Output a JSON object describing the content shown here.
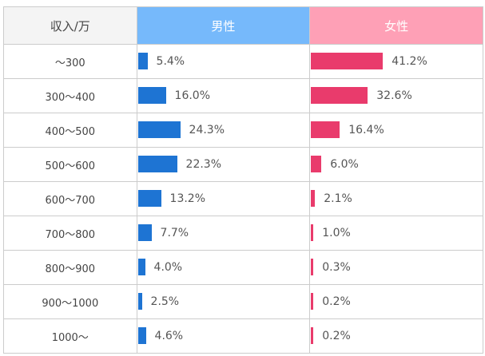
{
  "chart_data": {
    "type": "table",
    "headers": {
      "category": "収入/万",
      "male": "男性",
      "female": "女性"
    },
    "categories": [
      "～300",
      "300～400",
      "400～500",
      "500～600",
      "600～700",
      "700～800",
      "800～900",
      "900～1000",
      "1000～"
    ],
    "series": [
      {
        "name": "男性",
        "color": "#1e74d3",
        "values": [
          5.4,
          16.0,
          24.3,
          22.3,
          13.2,
          7.7,
          4.0,
          2.5,
          4.6
        ],
        "labels": [
          "5.4%",
          "16.0%",
          "24.3%",
          "22.3%",
          "13.2%",
          "7.7%",
          "4.0%",
          "2.5%",
          "4.6%"
        ]
      },
      {
        "name": "女性",
        "color": "#e93b6c",
        "values": [
          41.2,
          32.6,
          16.4,
          6.0,
          2.1,
          1.0,
          0.3,
          0.2,
          0.2
        ],
        "labels": [
          "41.2%",
          "32.6%",
          "16.4%",
          "6.0%",
          "2.1%",
          "1.0%",
          "0.3%",
          "0.2%",
          "0.2%"
        ]
      }
    ],
    "colors": {
      "header_male": "#76b9fb",
      "header_female": "#fea0b6",
      "header_label": "#f4f4f4"
    }
  }
}
